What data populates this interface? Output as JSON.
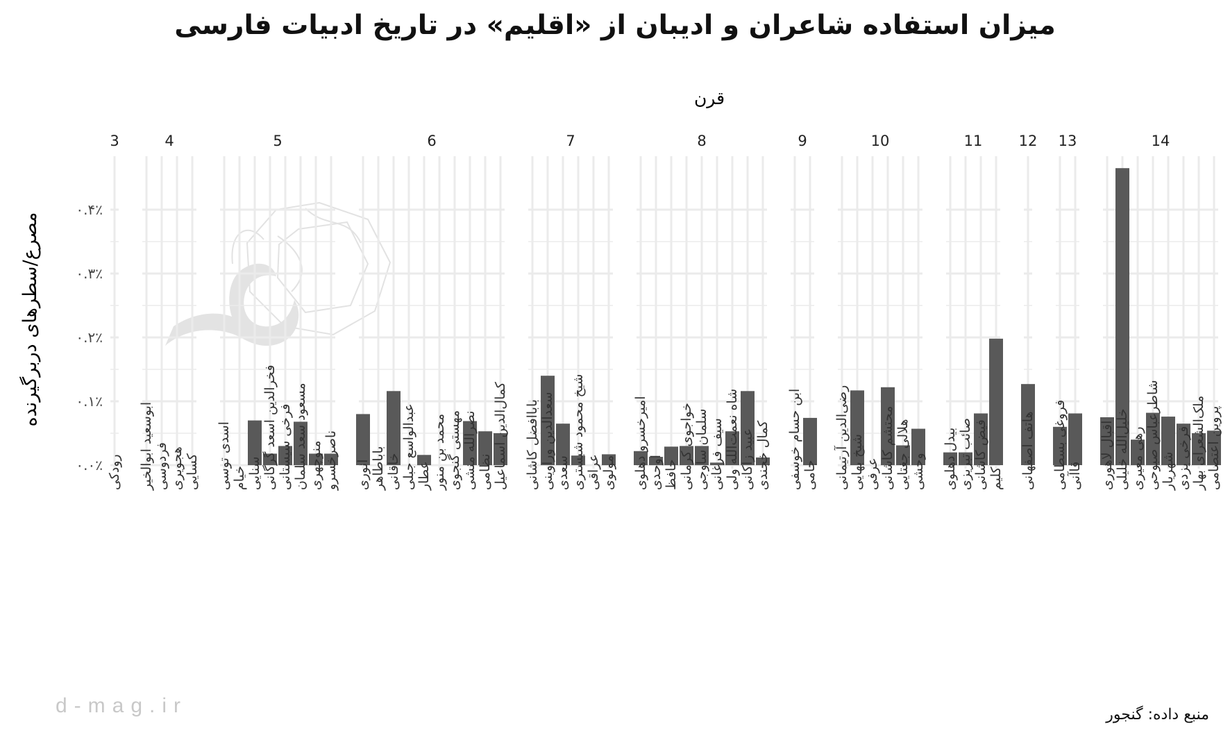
{
  "chart_data": {
    "type": "bar",
    "title": "میزان استفاده شاعران و ادیبان از «اقلیم» در تاریخ ادبیات فارسی",
    "facet_label": "قرن",
    "ylabel": "مصرع/سطرهای دربرگیرنده",
    "ylim": [
      0,
      0.47
    ],
    "yticks": [
      0,
      0.1,
      0.2,
      0.3,
      0.4
    ],
    "ytick_labels": [
      "۰.۰٪",
      "۰.۱٪",
      "۰.۲٪",
      "۰.۳٪",
      "۰.۴٪"
    ],
    "grid": true,
    "facets": [
      {
        "label": "3",
        "poets": [
          {
            "name": "رودکی",
            "value": 0
          }
        ]
      },
      {
        "label": "4",
        "poets": [
          {
            "name": "ابوسعید ابوالخیر",
            "value": 0
          },
          {
            "name": "فردوسی",
            "value": 0
          },
          {
            "name": "هجویری",
            "value": 0
          },
          {
            "name": "کسایی",
            "value": 0
          }
        ]
      },
      {
        "label": "5",
        "poets": [
          {
            "name": "اسدی توسی",
            "value": 0
          },
          {
            "name": "خیام",
            "value": 0
          },
          {
            "name": "سنایی",
            "value": 0.07
          },
          {
            "name": "فخرالدین اسعد گرگانی",
            "value": 0.018
          },
          {
            "name": "فرخی سیستانی",
            "value": 0.03
          },
          {
            "name": "مسعود سعد سلمان",
            "value": 0.068
          },
          {
            "name": "منوچهری",
            "value": 0.018
          },
          {
            "name": "ناصرخسرو",
            "value": 0.018
          }
        ]
      },
      {
        "label": "6",
        "poets": [
          {
            "name": "انوری",
            "value": 0.08
          },
          {
            "name": "باباطاهر",
            "value": 0
          },
          {
            "name": "خاقانی",
            "value": 0.116
          },
          {
            "name": "عبدالواسع جبلی",
            "value": 0
          },
          {
            "name": "عطار",
            "value": 0.016
          },
          {
            "name": "محمد بن منور",
            "value": 0
          },
          {
            "name": "مهستی گنجوی",
            "value": 0
          },
          {
            "name": "نصرالله منشی",
            "value": 0.069
          },
          {
            "name": "نظامی",
            "value": 0.053
          },
          {
            "name": "کمال‌الدین اسماعیل",
            "value": 0.05
          }
        ]
      },
      {
        "label": "7",
        "poets": [
          {
            "name": "باباافضل کاشانی",
            "value": 0
          },
          {
            "name": "سعدالدین وراوینی",
            "value": 0.14
          },
          {
            "name": "سعدی",
            "value": 0.065
          },
          {
            "name": "شیخ محمود شبستری",
            "value": 0.015
          },
          {
            "name": "عراقی",
            "value": 0
          },
          {
            "name": "مولوی",
            "value": 0.017
          }
        ]
      },
      {
        "label": "8",
        "poets": [
          {
            "name": "امیرخسرو دهلوی",
            "value": 0.022
          },
          {
            "name": "اوحدی",
            "value": 0.013
          },
          {
            "name": "حافظ",
            "value": 0.029
          },
          {
            "name": "خواجوی کرمانی",
            "value": 0.03
          },
          {
            "name": "سلمان ساوجی",
            "value": 0.03
          },
          {
            "name": "سیف فرغانی",
            "value": 0.004
          },
          {
            "name": "شاه نعمت‌الله ولی",
            "value": 0.053
          },
          {
            "name": "عبید زاکانی",
            "value": 0.116
          },
          {
            "name": "کمال خجندی",
            "value": 0.012
          }
        ]
      },
      {
        "label": "9",
        "poets": [
          {
            "name": "ابن حسام خوسفی",
            "value": 0
          },
          {
            "name": "جامی",
            "value": 0.074
          }
        ]
      },
      {
        "label": "10",
        "poets": [
          {
            "name": "رضی‌الدین آرتیمانی",
            "value": 0
          },
          {
            "name": "شیخ بهایی",
            "value": 0.117
          },
          {
            "name": "عرفی",
            "value": 0
          },
          {
            "name": "محتشم کاشانی",
            "value": 0.122
          },
          {
            "name": "هلالی جغتایی",
            "value": 0.031
          },
          {
            "name": "وحشی",
            "value": 0.057
          }
        ]
      },
      {
        "label": "11",
        "poets": [
          {
            "name": "بیدل دهلوی",
            "value": 0.02
          },
          {
            "name": "صائب تبریزی",
            "value": 0.02
          },
          {
            "name": "فیض کاشانی",
            "value": 0.081
          },
          {
            "name": "کلیم",
            "value": 0.198
          }
        ]
      },
      {
        "label": "12",
        "poets": [
          {
            "name": "هاتف اصفهانی",
            "value": 0.127
          }
        ]
      },
      {
        "label": "13",
        "poets": [
          {
            "name": "فروغی بسطامی",
            "value": 0.06
          },
          {
            "name": "قاآنی",
            "value": 0.081
          }
        ]
      },
      {
        "label": "14",
        "poets": [
          {
            "name": "اقبال لاهوری",
            "value": 0.075
          },
          {
            "name": "خلیل‌الله خلیلی",
            "value": 0.465
          },
          {
            "name": "رهی معیری",
            "value": 0.04
          },
          {
            "name": "شاطرعباس صبوحی",
            "value": 0.082
          },
          {
            "name": "شهریار",
            "value": 0.076
          },
          {
            "name": "فرخی یزدی",
            "value": 0.065
          },
          {
            "name": "ملک‌الشعرای بهار",
            "value": 0.05
          },
          {
            "name": "پروین اعتصامی",
            "value": 0.054
          }
        ]
      }
    ]
  },
  "source": "منبع داده: گنجور",
  "site": "d-mag.ir",
  "colors": {
    "bar": "#595959",
    "grid": "#ebebeb",
    "watermark": "#d9d9d9"
  }
}
